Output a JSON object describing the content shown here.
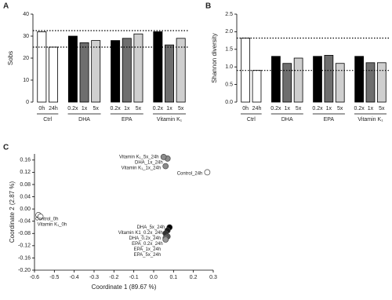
{
  "chart_data": [
    {
      "type": "bar",
      "label": "A",
      "y_label": "Sobs",
      "ylim": [
        0,
        40
      ],
      "yticks": [
        0,
        10,
        20,
        30,
        40
      ],
      "reference_lines": [
        32.5,
        25
      ],
      "groups": [
        {
          "name": "Ctrl",
          "categories": [
            "0h",
            "24h"
          ],
          "values": [
            32,
            25
          ],
          "colors": [
            "#ffffff",
            "#ffffff"
          ]
        },
        {
          "name": "DHA",
          "categories": [
            "0.2x",
            "1x",
            "5x"
          ],
          "values": [
            30,
            27,
            28
          ],
          "colors": [
            "#000000",
            "#6e6e6e",
            "#cfcfcf"
          ]
        },
        {
          "name": "EPA",
          "categories": [
            "0.2x",
            "1x",
            "5x"
          ],
          "values": [
            28,
            29,
            31
          ],
          "colors": [
            "#000000",
            "#6e6e6e",
            "#cfcfcf"
          ]
        },
        {
          "name": "Vitamin K₁",
          "categories": [
            "0.2x",
            "1x",
            "5x"
          ],
          "values": [
            32,
            26,
            29
          ],
          "colors": [
            "#000000",
            "#6e6e6e",
            "#cfcfcf"
          ]
        }
      ]
    },
    {
      "type": "bar",
      "label": "B",
      "y_label": "Shannon diversity",
      "ylim": [
        0,
        2.5
      ],
      "yticks": [
        {
          "value": 0,
          "label": "0.0"
        },
        0.5,
        {
          "value": 1,
          "label": "1.0"
        },
        1.5,
        {
          "value": 2,
          "label": "2.0"
        },
        2.5
      ],
      "reference_lines": [
        1.82,
        0.9
      ],
      "groups": [
        {
          "name": "Ctrl",
          "categories": [
            "0h",
            "24h"
          ],
          "values": [
            1.82,
            0.9
          ],
          "colors": [
            "#ffffff",
            "#ffffff"
          ]
        },
        {
          "name": "DHA",
          "categories": [
            "0.2x",
            "1x",
            "5x"
          ],
          "values": [
            1.3,
            1.1,
            1.25
          ],
          "colors": [
            "#000000",
            "#6e6e6e",
            "#cfcfcf"
          ]
        },
        {
          "name": "EPA",
          "categories": [
            "0.2x",
            "1x",
            "5x"
          ],
          "values": [
            1.3,
            1.33,
            1.1
          ],
          "colors": [
            "#000000",
            "#6e6e6e",
            "#cfcfcf"
          ]
        },
        {
          "name": "Vitamin K₁",
          "categories": [
            "0.2x",
            "1x",
            "5x"
          ],
          "values": [
            1.3,
            1.12,
            1.12
          ],
          "colors": [
            "#000000",
            "#6e6e6e",
            "#cfcfcf"
          ]
        }
      ]
    },
    {
      "type": "scatter",
      "label": "C",
      "x_label": "Coordinate 1 (89.67 %)",
      "y_label": "Coordinate 2 (2.87 %)",
      "xlim": [
        -0.6,
        0.3
      ],
      "xticks": [
        -0.6,
        -0.5,
        -0.4,
        -0.3,
        -0.2,
        -0.1,
        {
          "value": 0,
          "label": "0.0"
        },
        0.1,
        0.2,
        0.3
      ],
      "ylim": [
        -0.2,
        0.18
      ],
      "yticks": [
        {
          "value": -0.2,
          "label": "-0.20"
        },
        -0.16,
        -0.12,
        -0.08,
        -0.04,
        {
          "value": 0,
          "label": "0.00"
        },
        0.04,
        0.08,
        0.12,
        0.16
      ],
      "points": [
        {
          "label": "Control_0h",
          "x": -0.58,
          "y": -0.02,
          "color": "#ffffff"
        },
        {
          "label": "Vitamin K₁_0h",
          "x": -0.57,
          "y": -0.025,
          "color": "#ffffff"
        },
        {
          "label": "Control_24h",
          "x": 0.27,
          "y": 0.12,
          "color": "#ffffff"
        },
        {
          "label": "DHA_1x_24h",
          "x": 0.07,
          "y": 0.165,
          "color": "#8c8c8c"
        },
        {
          "label": "Vitamin K₁_5x_24h",
          "x": 0.05,
          "y": 0.17,
          "color": "#8c8c8c"
        },
        {
          "label": "Vitamin K₁_1x_24h",
          "x": 0.06,
          "y": 0.14,
          "color": "#8c8c8c"
        },
        {
          "label": "DHA_5x_24h",
          "x": 0.08,
          "y": -0.06,
          "color": "#000000"
        },
        {
          "label": "Vitamin K1_0.2x_24h",
          "x": 0.07,
          "y": -0.07,
          "color": "#1a1a1a"
        },
        {
          "label": "DHA_0.2x_24h",
          "x": 0.06,
          "y": -0.08,
          "color": "#333333"
        },
        {
          "label": "EPA_0.2x_24h",
          "x": 0.07,
          "y": -0.09,
          "color": "#555555"
        },
        {
          "label": "EPA_1x_24h",
          "x": 0.06,
          "y": -0.095,
          "color": "#777777"
        },
        {
          "label": "EPA_5x_24h",
          "x": 0.06,
          "y": -0.1,
          "color": "#999999"
        }
      ]
    }
  ]
}
